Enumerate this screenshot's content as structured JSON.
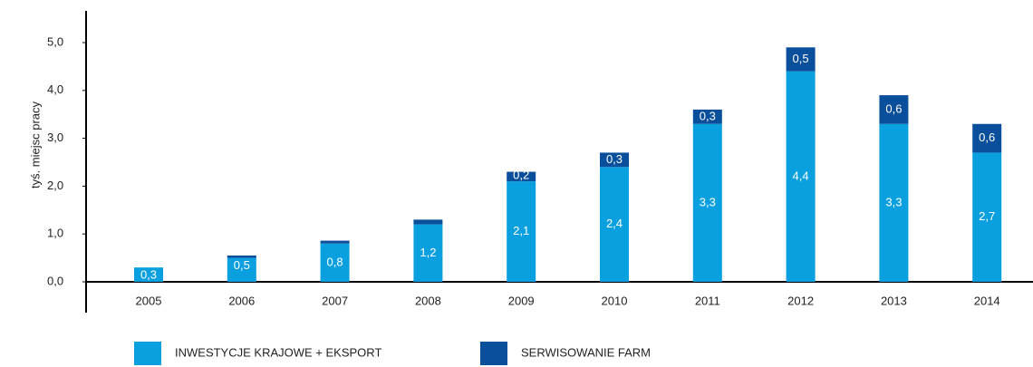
{
  "chart_data": {
    "type": "stacked_bar",
    "y_label": "tyś. miejsc pracy",
    "categories": [
      "2005",
      "2006",
      "2007",
      "2008",
      "2009",
      "2010",
      "2011",
      "2012",
      "2013",
      "2014"
    ],
    "series": [
      {
        "name": "INWESTYCJE KRAJOWE + EKSPORT",
        "color": "#0aa0e0",
        "values": [
          0.3,
          0.5,
          0.8,
          1.2,
          2.1,
          2.4,
          3.3,
          4.4,
          3.3,
          2.7
        ],
        "value_labels": [
          "0,3",
          "0,5",
          "0,8",
          "1,2",
          "2,1",
          "2,4",
          "3,3",
          "4,4",
          "3,3",
          "2,7"
        ]
      },
      {
        "name": "SERWISOWANIE FARM",
        "color": "#0a4f9c",
        "values": [
          0,
          0.05,
          0.06,
          0.1,
          0.2,
          0.3,
          0.3,
          0.5,
          0.6,
          0.6
        ],
        "value_labels": [
          null,
          null,
          null,
          null,
          "0,2",
          "0,3",
          "0,3",
          "0,5",
          "0,6",
          "0,6"
        ]
      }
    ],
    "ylim": [
      0,
      5.6
    ],
    "yticks": [
      {
        "value": 0,
        "label": "0,0"
      },
      {
        "value": 1,
        "label": "1,0"
      },
      {
        "value": 2,
        "label": "2,0"
      },
      {
        "value": 3,
        "label": "3,0"
      },
      {
        "value": 4,
        "label": "4,0"
      },
      {
        "value": 5,
        "label": "5,0"
      }
    ]
  }
}
